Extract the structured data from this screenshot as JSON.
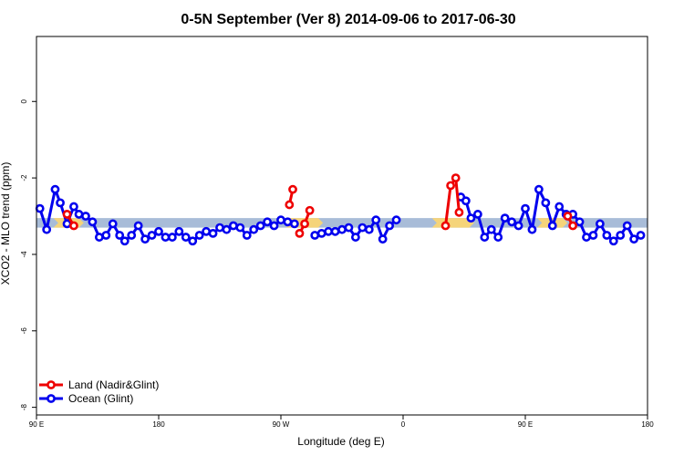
{
  "chart_data": {
    "type": "line",
    "title": "0-5N September (Ver 8)   2014-09-06 to 2017-06-30",
    "xlabel": "Longitude (deg E)",
    "ylabel": "XCO2 - MLO trend (ppm)",
    "xlim": [
      90,
      450
    ],
    "ylim": [
      -8.2,
      1.7
    ],
    "x_ticks": [
      {
        "value": 90,
        "label": "90 E"
      },
      {
        "value": 162,
        "label": "180"
      },
      {
        "value": 234,
        "label": "90 W"
      },
      {
        "value": 306,
        "label": "0"
      },
      {
        "value": 378,
        "label": "90 E"
      },
      {
        "value": 450,
        "label": "180"
      }
    ],
    "y_ticks": [
      {
        "value": 0,
        "label": "0"
      },
      {
        "value": -2,
        "label": "-2"
      },
      {
        "value": -4,
        "label": "-4"
      },
      {
        "value": -6,
        "label": "-6"
      },
      {
        "value": -8,
        "label": "-8"
      }
    ],
    "grid": false,
    "legend_position": "bottom-left",
    "background_band": {
      "y_range": [
        -3.3,
        -3.05
      ],
      "ocean_color": "#a8bcd8",
      "land_color": "#f5d47a",
      "land_segments": [
        [
          100,
          115
        ],
        [
          237,
          256
        ],
        [
          323,
          345
        ],
        [
          385,
          400
        ]
      ]
    },
    "series": [
      {
        "name": "Land (Nadir&Glint)",
        "color": "#ee0000",
        "segments": [
          [
            [
              108,
              -2.95
            ],
            [
              112,
              -3.25
            ]
          ],
          [
            [
              239,
              -2.7
            ],
            [
              241,
              -2.3
            ]
          ],
          [
            [
              245,
              -3.45
            ],
            [
              248,
              -3.2
            ],
            [
              251,
              -2.85
            ]
          ],
          [
            [
              331,
              -3.25
            ],
            [
              334,
              -2.2
            ],
            [
              337,
              -2.0
            ],
            [
              339,
              -2.9
            ]
          ],
          [
            [
              403,
              -3.0
            ],
            [
              406,
              -3.25
            ]
          ]
        ]
      },
      {
        "name": "Ocean (Glint)",
        "color": "#0000ee",
        "segments": [
          [
            [
              92,
              -2.8
            ],
            [
              96,
              -3.35
            ],
            [
              101,
              -2.3
            ],
            [
              104,
              -2.65
            ],
            [
              108,
              -3.2
            ],
            [
              112,
              -2.75
            ],
            [
              115,
              -2.95
            ],
            [
              119,
              -3.0
            ],
            [
              123,
              -3.15
            ],
            [
              127,
              -3.55
            ],
            [
              131,
              -3.5
            ],
            [
              135,
              -3.2
            ],
            [
              139,
              -3.5
            ],
            [
              142,
              -3.65
            ],
            [
              146,
              -3.5
            ],
            [
              150,
              -3.25
            ],
            [
              154,
              -3.6
            ],
            [
              158,
              -3.5
            ],
            [
              162,
              -3.4
            ],
            [
              166,
              -3.55
            ],
            [
              170,
              -3.55
            ],
            [
              174,
              -3.4
            ],
            [
              178,
              -3.55
            ],
            [
              182,
              -3.65
            ],
            [
              186,
              -3.5
            ],
            [
              190,
              -3.4
            ],
            [
              194,
              -3.45
            ],
            [
              198,
              -3.3
            ],
            [
              202,
              -3.35
            ],
            [
              206,
              -3.25
            ],
            [
              210,
              -3.3
            ],
            [
              214,
              -3.5
            ],
            [
              218,
              -3.35
            ],
            [
              222,
              -3.25
            ],
            [
              226,
              -3.15
            ],
            [
              230,
              -3.25
            ],
            [
              234,
              -3.1
            ],
            [
              238,
              -3.15
            ],
            [
              242,
              -3.2
            ]
          ],
          [
            [
              254,
              -3.5
            ],
            [
              258,
              -3.45
            ],
            [
              262,
              -3.4
            ],
            [
              266,
              -3.4
            ],
            [
              270,
              -3.35
            ],
            [
              274,
              -3.3
            ],
            [
              278,
              -3.55
            ],
            [
              282,
              -3.3
            ],
            [
              286,
              -3.35
            ],
            [
              290,
              -3.1
            ],
            [
              294,
              -3.6
            ],
            [
              298,
              -3.25
            ],
            [
              302,
              -3.1
            ]
          ],
          [
            [
              340,
              -2.5
            ],
            [
              343,
              -2.6
            ],
            [
              346,
              -3.05
            ],
            [
              350,
              -2.95
            ],
            [
              354,
              -3.55
            ],
            [
              358,
              -3.35
            ],
            [
              362,
              -3.55
            ],
            [
              366,
              -3.05
            ],
            [
              370,
              -3.15
            ],
            [
              374,
              -3.25
            ],
            [
              378,
              -2.8
            ],
            [
              382,
              -3.35
            ],
            [
              386,
              -2.3
            ],
            [
              390,
              -2.65
            ],
            [
              394,
              -3.25
            ],
            [
              398,
              -2.75
            ],
            [
              402,
              -2.95
            ],
            [
              406,
              -2.95
            ],
            [
              410,
              -3.15
            ],
            [
              414,
              -3.55
            ],
            [
              418,
              -3.5
            ],
            [
              422,
              -3.2
            ],
            [
              426,
              -3.5
            ],
            [
              430,
              -3.65
            ],
            [
              434,
              -3.5
            ],
            [
              438,
              -3.25
            ],
            [
              442,
              -3.6
            ],
            [
              446,
              -3.5
            ]
          ]
        ]
      }
    ]
  }
}
